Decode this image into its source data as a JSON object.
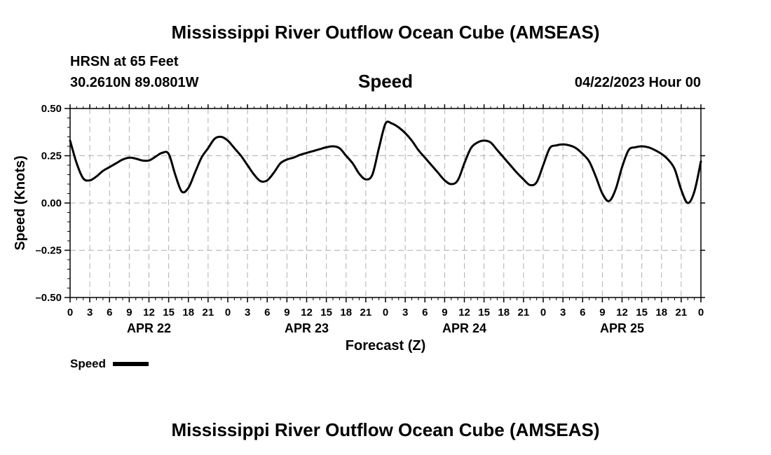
{
  "page": {
    "title_top": "Mississippi River Outflow Ocean Cube (AMSEAS)",
    "title_bottom": "Mississippi River Outflow Ocean Cube (AMSEAS)",
    "station": "HRSN at 65 Feet",
    "location": "30.2610N  89.0801W",
    "datetime": "04/22/2023 Hour 00"
  },
  "chart_data": {
    "type": "line",
    "title": "Speed",
    "xlabel": "Forecast (Z)",
    "ylabel": "Speed (Knots)",
    "ylim": [
      -0.5,
      0.5
    ],
    "yticks": [
      -0.5,
      -0.25,
      0.0,
      0.25,
      0.5
    ],
    "ytick_labels": [
      "–0.50",
      "–0.25",
      "0.00",
      "0.25",
      "0.50"
    ],
    "xlim_hours": [
      0,
      96
    ],
    "xtick_hours": [
      0,
      3,
      6,
      9,
      12,
      15,
      18,
      21,
      24,
      27,
      30,
      33,
      36,
      39,
      42,
      45,
      48,
      51,
      54,
      57,
      60,
      63,
      66,
      69,
      72,
      75,
      78,
      81,
      84,
      87,
      90,
      93,
      96
    ],
    "xtick_labels": [
      "0",
      "3",
      "6",
      "9",
      "12",
      "15",
      "18",
      "21",
      "0",
      "3",
      "6",
      "9",
      "12",
      "15",
      "18",
      "21",
      "0",
      "3",
      "6",
      "9",
      "12",
      "15",
      "18",
      "21",
      "0",
      "3",
      "6",
      "9",
      "12",
      "15",
      "18",
      "21",
      "0"
    ],
    "date_labels": [
      {
        "hour": 12,
        "label": "APR 22"
      },
      {
        "hour": 36,
        "label": "APR 23"
      },
      {
        "hour": 60,
        "label": "APR 24"
      },
      {
        "hour": 84,
        "label": "APR 25"
      }
    ],
    "grid": true,
    "legend": {
      "label": "Speed",
      "placement": "bottom-left"
    },
    "series": [
      {
        "name": "Speed",
        "color": "#000000",
        "x": [
          0,
          1,
          2,
          3,
          4,
          5,
          6,
          7,
          8,
          9,
          10,
          11,
          12,
          13,
          14,
          15,
          16,
          17,
          18,
          19,
          20,
          21,
          22,
          23,
          24,
          25,
          26,
          27,
          28,
          29,
          30,
          31,
          32,
          33,
          34,
          35,
          36,
          37,
          38,
          39,
          40,
          41,
          42,
          43,
          44,
          45,
          46,
          47,
          48,
          49,
          50,
          51,
          52,
          53,
          54,
          55,
          56,
          57,
          58,
          59,
          60,
          61,
          62,
          63,
          64,
          65,
          66,
          67,
          68,
          69,
          70,
          71,
          72,
          73,
          74,
          75,
          76,
          77,
          78,
          79,
          80,
          81,
          82,
          83,
          84,
          85,
          86,
          87,
          88,
          89,
          90,
          91,
          92,
          93,
          94,
          95,
          96
        ],
        "y": [
          0.33,
          0.21,
          0.13,
          0.12,
          0.14,
          0.17,
          0.19,
          0.21,
          0.23,
          0.24,
          0.235,
          0.225,
          0.225,
          0.245,
          0.265,
          0.26,
          0.15,
          0.06,
          0.08,
          0.16,
          0.24,
          0.29,
          0.34,
          0.35,
          0.33,
          0.29,
          0.25,
          0.2,
          0.15,
          0.115,
          0.12,
          0.16,
          0.21,
          0.23,
          0.24,
          0.255,
          0.265,
          0.275,
          0.285,
          0.295,
          0.3,
          0.29,
          0.25,
          0.21,
          0.155,
          0.125,
          0.15,
          0.29,
          0.42,
          0.42,
          0.4,
          0.37,
          0.33,
          0.28,
          0.24,
          0.2,
          0.16,
          0.12,
          0.1,
          0.12,
          0.21,
          0.29,
          0.32,
          0.33,
          0.32,
          0.28,
          0.24,
          0.2,
          0.16,
          0.125,
          0.095,
          0.11,
          0.2,
          0.29,
          0.305,
          0.31,
          0.305,
          0.29,
          0.26,
          0.22,
          0.14,
          0.05,
          0.01,
          0.07,
          0.19,
          0.28,
          0.295,
          0.3,
          0.295,
          0.28,
          0.26,
          0.23,
          0.18,
          0.07,
          0.0,
          0.06,
          0.22
        ]
      }
    ]
  }
}
